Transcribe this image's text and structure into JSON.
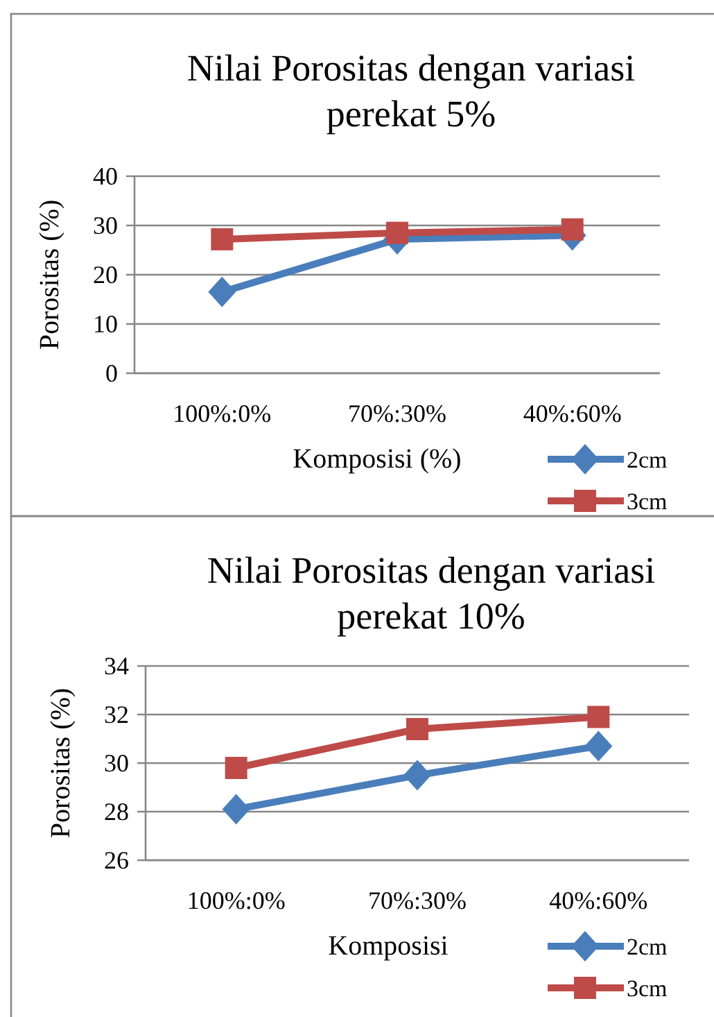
{
  "chart_data": [
    {
      "type": "line",
      "title": "Nilai Porositas dengan variasi perekat 5%",
      "xlabel": "Komposisi (%)",
      "ylabel": "Porositas (%)",
      "categories": [
        "100%:0%",
        "70%:30%",
        "40%:60%"
      ],
      "ylim": [
        0,
        40
      ],
      "yticks": [
        0,
        10,
        20,
        30,
        40
      ],
      "grid": "y",
      "legend": "bottom right",
      "series": [
        {
          "name": "2cm",
          "color": "#4a7ebb",
          "marker": "diamond",
          "values": [
            16.5,
            27.2,
            28.0
          ]
        },
        {
          "name": "3cm",
          "color": "#be4b48",
          "marker": "square",
          "values": [
            27.2,
            28.5,
            29.2
          ]
        }
      ]
    },
    {
      "type": "line",
      "title": "Nilai Porositas dengan variasi perekat 10%",
      "xlabel": "Komposisi",
      "ylabel": "Porositas  (%)",
      "categories": [
        "100%:0%",
        "70%:30%",
        "40%:60%"
      ],
      "ylim": [
        26,
        34
      ],
      "yticks": [
        26,
        28,
        30,
        32,
        34
      ],
      "grid": "y",
      "legend": "bottom right",
      "series": [
        {
          "name": "2cm",
          "color": "#4a7ebb",
          "marker": "diamond",
          "values": [
            28.1,
            29.5,
            30.7
          ]
        },
        {
          "name": "3cm",
          "color": "#be4b48",
          "marker": "square",
          "values": [
            29.8,
            31.4,
            31.9
          ]
        }
      ]
    }
  ]
}
